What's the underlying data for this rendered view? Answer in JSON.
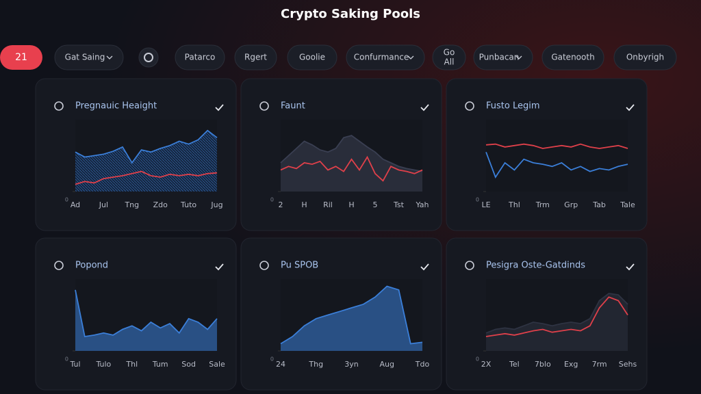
{
  "title": "Crypto Saking Pools",
  "toolbar": [
    {
      "label": "21",
      "active": true
    },
    {
      "label": "Gat Saing",
      "dropdown": true
    },
    {
      "icon": true
    },
    {
      "label": "Patarco"
    },
    {
      "label": "Rgert"
    },
    {
      "label": "Goolie"
    },
    {
      "label": "Confurmance",
      "dropdown": true
    },
    {
      "lines": [
        "Go",
        "All"
      ]
    },
    {
      "label": "Punbacan",
      "dropdown": true
    },
    {
      "label": "Gatenooth"
    },
    {
      "label": "Onbyrigh"
    }
  ],
  "cards": [
    {
      "title": "Pregnauic Heaight",
      "chart": {
        "type": "line",
        "ylim": [
          0,
          100
        ],
        "yticks": [
          0
        ],
        "categories": [
          "Ad",
          null,
          null,
          "Jul",
          null,
          null,
          "Tng",
          null,
          null,
          "Zdo",
          null,
          null,
          "Tuto",
          null,
          null,
          "Jug"
        ],
        "series": [
          {
            "color": "#3b7fd9",
            "area": true,
            "hatch": true,
            "values": [
              55,
              48,
              50,
              52,
              56,
              62,
              40,
              58,
              55,
              60,
              64,
              70,
              66,
              72,
              85,
              75
            ]
          },
          {
            "color": "#e0404a",
            "area": false,
            "values": [
              10,
              14,
              12,
              18,
              20,
              22,
              25,
              28,
              22,
              20,
              24,
              22,
              24,
              22,
              25,
              26
            ]
          }
        ]
      }
    },
    {
      "title": "Faunt",
      "chart": {
        "type": "line",
        "ylim": [
          0,
          100
        ],
        "yticks": [
          0
        ],
        "categories": [
          "2",
          null,
          null,
          "H",
          null,
          null,
          "Ril",
          null,
          null,
          "H",
          null,
          null,
          "5",
          null,
          null,
          "Tst",
          null,
          null,
          "Yah"
        ],
        "series": [
          {
            "color": "#3a3f52",
            "area": true,
            "values": [
              40,
              50,
              60,
              70,
              65,
              58,
              55,
              60,
              75,
              78,
              70,
              62,
              55,
              45,
              40,
              35,
              32,
              30,
              28
            ]
          },
          {
            "color": "#e0404a",
            "area": false,
            "values": [
              30,
              35,
              32,
              40,
              38,
              42,
              30,
              35,
              28,
              45,
              30,
              48,
              25,
              15,
              35,
              30,
              28,
              25,
              30
            ]
          }
        ]
      }
    },
    {
      "title": "Fusto Legim",
      "chart": {
        "type": "line",
        "ylim": [
          0,
          100
        ],
        "yticks": [
          0
        ],
        "categories": [
          "LE",
          null,
          null,
          "Thl",
          null,
          null,
          "Trm",
          null,
          null,
          "Grp",
          null,
          null,
          "Tab",
          null,
          null,
          "Tale"
        ],
        "series": [
          {
            "color": "#e0404a",
            "area": false,
            "values": [
              65,
              66,
              62,
              64,
              66,
              64,
              60,
              62,
              64,
              62,
              66,
              62,
              60,
              62,
              64,
              60
            ]
          },
          {
            "color": "#3b7fd9",
            "area": false,
            "values": [
              55,
              20,
              40,
              30,
              45,
              40,
              38,
              35,
              40,
              30,
              35,
              28,
              32,
              30,
              35,
              38
            ]
          }
        ]
      }
    },
    {
      "title": "Popond",
      "chart": {
        "type": "area",
        "ylim": [
          0,
          100
        ],
        "yticks": [
          0
        ],
        "categories": [
          "Tul",
          null,
          null,
          "Tulo",
          null,
          null,
          "Thl",
          null,
          null,
          "Tum",
          null,
          null,
          "Sod",
          null,
          null,
          "Sale"
        ],
        "series": [
          {
            "color": "#3b7fd9",
            "area": true,
            "values": [
              85,
              20,
              22,
              25,
              22,
              30,
              35,
              28,
              40,
              32,
              38,
              25,
              45,
              40,
              30,
              45
            ]
          }
        ]
      }
    },
    {
      "title": "Pu SPOB",
      "chart": {
        "type": "area",
        "ylim": [
          0,
          100
        ],
        "yticks": [
          0
        ],
        "categories": [
          "24",
          null,
          null,
          "Thg",
          null,
          null,
          "3yn",
          null,
          null,
          "Aug",
          null,
          null,
          "Tdo"
        ],
        "series": [
          {
            "color": "#3b7fd9",
            "area": true,
            "values": [
              10,
              20,
              35,
              45,
              50,
              55,
              60,
              65,
              75,
              90,
              85,
              10,
              12
            ]
          }
        ]
      }
    },
    {
      "title": "Pesigra Oste-Gatdinds",
      "chart": {
        "type": "line",
        "ylim": [
          0,
          100
        ],
        "yticks": [
          0
        ],
        "categories": [
          "2X",
          null,
          null,
          "Tel",
          null,
          null,
          "7blo",
          null,
          null,
          "Exg",
          null,
          null,
          "7rm",
          null,
          null,
          "Sehs"
        ],
        "series": [
          {
            "color": "#2e3342",
            "area": true,
            "values": [
              25,
              30,
              32,
              30,
              35,
              40,
              38,
              35,
              38,
              40,
              38,
              45,
              70,
              80,
              78,
              65
            ]
          },
          {
            "color": "#e0404a",
            "area": false,
            "values": [
              20,
              22,
              24,
              22,
              25,
              28,
              30,
              26,
              28,
              30,
              28,
              35,
              60,
              75,
              70,
              50
            ]
          }
        ]
      }
    }
  ]
}
